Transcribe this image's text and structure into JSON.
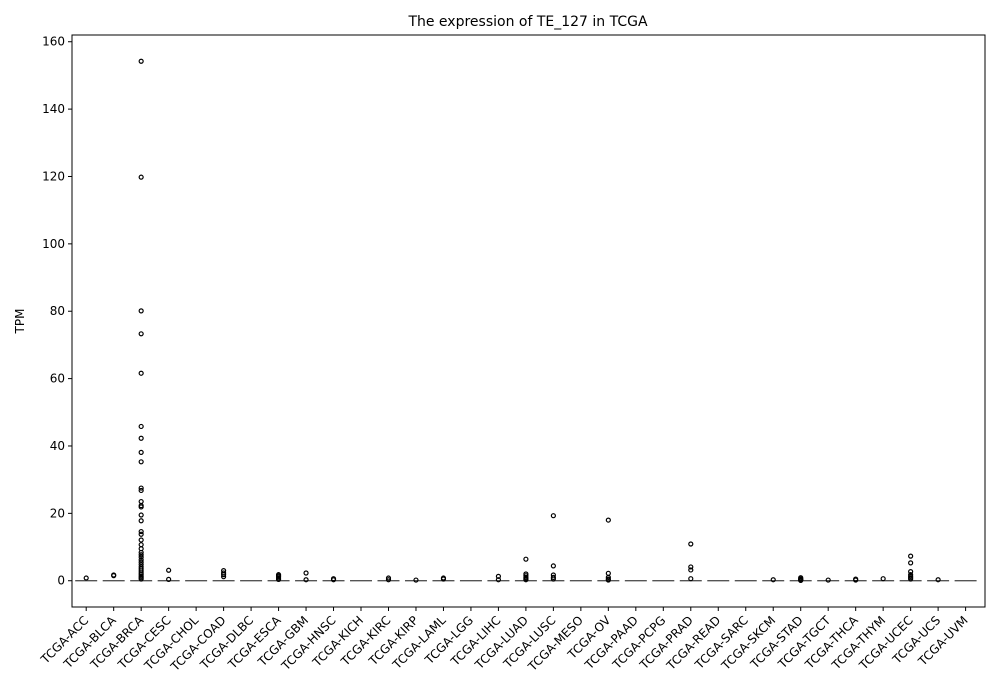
{
  "chart_data": {
    "type": "box",
    "title": "The expression of TE_127 in TCGA",
    "xlabel": "",
    "ylabel": "TPM",
    "ylim": [
      -7.8,
      162
    ],
    "yticks": [
      0,
      20,
      40,
      60,
      80,
      100,
      120,
      140,
      160
    ],
    "grid": false,
    "legend": "none",
    "categories": [
      "TCGA-ACC",
      "TCGA-BLCA",
      "TCGA-BRCA",
      "TCGA-CESC",
      "TCGA-CHOL",
      "TCGA-COAD",
      "TCGA-DLBC",
      "TCGA-ESCA",
      "TCGA-GBM",
      "TCGA-HNSC",
      "TCGA-KICH",
      "TCGA-KIRC",
      "TCGA-KIRP",
      "TCGA-LAML",
      "TCGA-LGG",
      "TCGA-LIHC",
      "TCGA-LUAD",
      "TCGA-LUSC",
      "TCGA-MESO",
      "TCGA-OV",
      "TCGA-PAAD",
      "TCGA-PCPG",
      "TCGA-PRAD",
      "TCGA-READ",
      "TCGA-SARC",
      "TCGA-SKCM",
      "TCGA-STAD",
      "TCGA-TGCT",
      "TCGA-THCA",
      "TCGA-THYM",
      "TCGA-UCEC",
      "TCGA-UCS",
      "TCGA-UVM"
    ],
    "median": [
      0,
      0,
      0,
      0,
      0,
      0,
      0,
      0,
      0,
      0,
      0,
      0,
      0,
      0,
      0,
      0,
      0,
      0,
      0,
      0,
      0,
      0,
      0,
      0,
      0,
      0,
      0,
      0,
      0,
      0,
      0,
      0,
      0
    ],
    "outliers": [
      [
        0.8
      ],
      [
        1.7,
        1.5
      ],
      [
        154.2,
        119.8,
        80.1,
        73.3,
        61.6,
        45.8,
        42.3,
        38.1,
        35.3,
        27.5,
        26.8,
        23.5,
        22.3,
        21.9,
        19.5,
        17.8,
        14.6,
        13.8,
        12.1,
        10.7,
        9.5,
        8.4,
        7.7,
        7.0,
        6.2,
        5.5,
        4.8,
        4.1,
        3.5,
        2.9,
        2.3,
        1.8,
        1.3,
        0.9,
        0.5
      ],
      [
        3.1,
        0.4
      ],
      [],
      [
        3.0,
        2.3,
        1.8,
        1.2
      ],
      [],
      [
        1.8,
        1.5,
        1.2,
        0.8,
        0.4
      ],
      [
        2.3,
        0.3
      ],
      [
        0.6,
        0.3
      ],
      [],
      [
        0.8,
        0.3
      ],
      [
        0.2
      ],
      [
        0.8,
        0.5
      ],
      [],
      [
        1.3,
        0.3
      ],
      [
        6.4,
        2.0,
        1.5,
        1.0,
        0.6,
        0.3
      ],
      [
        19.3,
        4.4,
        1.7,
        1.0,
        0.5
      ],
      [],
      [
        18.0,
        2.2,
        1.0,
        0.5,
        0.2
      ],
      [],
      [],
      [
        10.9,
        4.1,
        3.2,
        0.6
      ],
      [],
      [],
      [
        0.3
      ],
      [
        0.9,
        0.6,
        0.4,
        0.2,
        0.1
      ],
      [
        0.2
      ],
      [
        0.5,
        0.2
      ],
      [
        0.6
      ],
      [
        7.3,
        5.3,
        2.7,
        1.8,
        1.3,
        0.9,
        0.5
      ],
      [
        0.3
      ],
      []
    ]
  }
}
